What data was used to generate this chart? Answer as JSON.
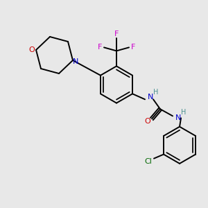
{
  "bg_color": "#e8e8e8",
  "bond_color": "#000000",
  "colors": {
    "N": "#0000cc",
    "O": "#cc0000",
    "F": "#cc00cc",
    "Cl": "#006600",
    "C": "#000000",
    "H": "#4a9090"
  },
  "font_size": 7.5,
  "bond_lw": 1.4
}
